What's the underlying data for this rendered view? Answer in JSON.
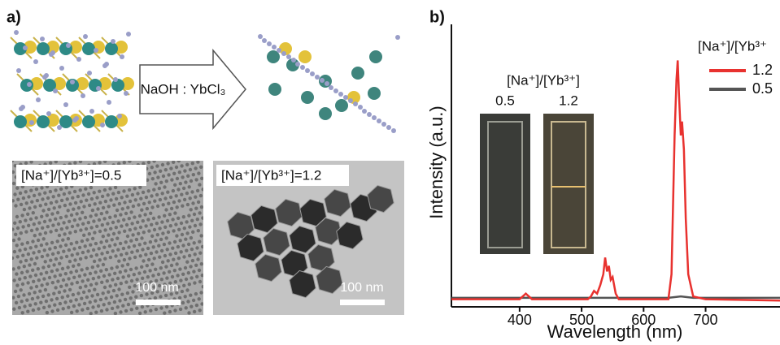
{
  "panel_a": {
    "label": "a)",
    "arrow_label": "NaOH : YbCl₃",
    "tem_left": {
      "label": "[Na⁺]/[Yb³⁺]=0.5",
      "scale": "100 nm"
    },
    "tem_right": {
      "label": "[Na⁺]/[Yb³⁺]=1.2",
      "scale": "100 nm"
    }
  },
  "panel_b": {
    "label": "b)",
    "inset": {
      "title": "[Na⁺]/[Yb³⁺]",
      "left": "0.5",
      "right": "1.2"
    }
  },
  "chart_data": {
    "type": "line",
    "xlabel": "Wavelength (nm)",
    "ylabel": "Intensity (a.u.)",
    "legend_title": "[Na⁺]/[Yb³⁺",
    "xlim": [
      290,
      820
    ],
    "ylim": [
      0,
      100
    ],
    "xticks": [
      400,
      500,
      600,
      700
    ],
    "series": [
      {
        "name": "1.2",
        "color": "#e8322f",
        "x": [
          290,
          400,
          405,
          410,
          415,
          420,
          510,
          515,
          520,
          525,
          530,
          535,
          538,
          541,
          544,
          547,
          550,
          555,
          560,
          640,
          645,
          650,
          653,
          655,
          657,
          660,
          662,
          665,
          668,
          672,
          680,
          700,
          820
        ],
        "values": [
          1,
          1,
          2,
          3,
          2,
          1,
          1,
          2,
          4,
          3,
          6,
          10,
          16,
          11,
          13,
          8,
          9,
          3,
          1,
          1,
          10,
          60,
          80,
          87,
          75,
          60,
          65,
          55,
          30,
          10,
          2,
          1,
          0.5
        ]
      },
      {
        "name": "0.5",
        "color": "#555555",
        "x": [
          290,
          500,
          600,
          640,
          660,
          680,
          820
        ],
        "values": [
          1.5,
          1.5,
          1.5,
          1.5,
          2,
          1.5,
          1.5
        ]
      }
    ]
  }
}
